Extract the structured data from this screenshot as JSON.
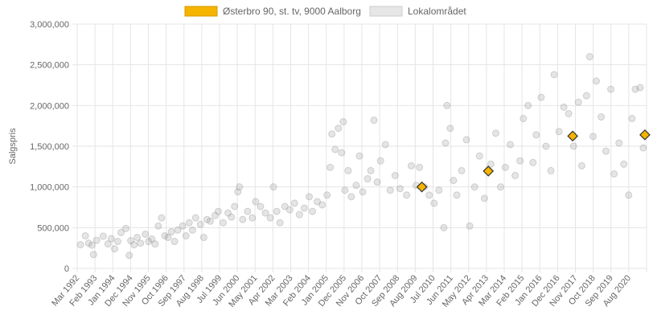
{
  "chart_data": {
    "type": "scatter",
    "title": "",
    "xlabel": "",
    "ylabel": "Salgspris",
    "xlim": [
      "1992-03-01",
      "2021-06-01"
    ],
    "ylim": [
      0,
      3000000
    ],
    "y_ticks": [
      "0",
      "500,000",
      "1,000,000",
      "1,500,000",
      "2,000,000",
      "2,500,000",
      "3,000,000"
    ],
    "x_ticks": [
      "Mar 1992",
      "Feb 1993",
      "Jan 1994",
      "Dec 1994",
      "Nov 1995",
      "Oct 1996",
      "Sep 1997",
      "Aug 1998",
      "Jul 1999",
      "Jun 2000",
      "May 2001",
      "Apr 2002",
      "Mar 2003",
      "Feb 2004",
      "Jan 2005",
      "Dec 2005",
      "Nov 2006",
      "Oct 2007",
      "Sep 2008",
      "Aug 2009",
      "Jul 2010",
      "Jun 2011",
      "May 2012",
      "Apr 2013",
      "Mar 2014",
      "Feb 2015",
      "Jan 2016",
      "Dec 2016",
      "Nov 2017",
      "Oct 2018",
      "Sep 2019",
      "Aug 2020"
    ],
    "grid": true,
    "legend_position": "top",
    "series": [
      {
        "name": "Østerbro 90, st. tv, 9000 Aalborg",
        "marker": "diamond",
        "color": "#f5b400",
        "points": [
          {
            "x": "2009-11-15",
            "y": 1000000
          },
          {
            "x": "2013-04-15",
            "y": 1195000
          },
          {
            "x": "2017-08-15",
            "y": 1625000
          },
          {
            "x": "2021-05-01",
            "y": 1640000
          }
        ]
      },
      {
        "name": "Lokalområdet",
        "marker": "circle",
        "color": "#aaaaaa",
        "points": [
          {
            "x": "1992-05-01",
            "y": 290000
          },
          {
            "x": "1992-08-01",
            "y": 400000
          },
          {
            "x": "1992-10-01",
            "y": 310000
          },
          {
            "x": "1992-12-01",
            "y": 285000
          },
          {
            "x": "1993-01-01",
            "y": 170000
          },
          {
            "x": "1993-03-01",
            "y": 345000
          },
          {
            "x": "1993-07-01",
            "y": 395000
          },
          {
            "x": "1993-10-01",
            "y": 300000
          },
          {
            "x": "1993-12-01",
            "y": 365000
          },
          {
            "x": "1994-02-01",
            "y": 240000
          },
          {
            "x": "1994-04-01",
            "y": 330000
          },
          {
            "x": "1994-06-01",
            "y": 440000
          },
          {
            "x": "1994-09-01",
            "y": 490000
          },
          {
            "x": "1994-11-01",
            "y": 160000
          },
          {
            "x": "1994-12-01",
            "y": 340000
          },
          {
            "x": "1995-02-01",
            "y": 290000
          },
          {
            "x": "1995-04-01",
            "y": 380000
          },
          {
            "x": "1995-06-01",
            "y": 310000
          },
          {
            "x": "1995-09-01",
            "y": 420000
          },
          {
            "x": "1995-11-01",
            "y": 330000
          },
          {
            "x": "1996-01-01",
            "y": 360000
          },
          {
            "x": "1996-03-01",
            "y": 300000
          },
          {
            "x": "1996-05-01",
            "y": 520000
          },
          {
            "x": "1996-07-01",
            "y": 620000
          },
          {
            "x": "1996-09-01",
            "y": 400000
          },
          {
            "x": "1996-11-01",
            "y": 380000
          },
          {
            "x": "1997-01-01",
            "y": 450000
          },
          {
            "x": "1997-03-01",
            "y": 330000
          },
          {
            "x": "1997-05-01",
            "y": 470000
          },
          {
            "x": "1997-08-01",
            "y": 520000
          },
          {
            "x": "1997-10-01",
            "y": 400000
          },
          {
            "x": "1997-12-01",
            "y": 560000
          },
          {
            "x": "1998-02-01",
            "y": 470000
          },
          {
            "x": "1998-04-01",
            "y": 620000
          },
          {
            "x": "1998-07-01",
            "y": 540000
          },
          {
            "x": "1998-09-01",
            "y": 380000
          },
          {
            "x": "1998-11-01",
            "y": 600000
          },
          {
            "x": "1999-01-01",
            "y": 580000
          },
          {
            "x": "1999-04-01",
            "y": 650000
          },
          {
            "x": "1999-06-01",
            "y": 700000
          },
          {
            "x": "1999-09-01",
            "y": 560000
          },
          {
            "x": "1999-12-01",
            "y": 680000
          },
          {
            "x": "2000-02-01",
            "y": 630000
          },
          {
            "x": "2000-04-01",
            "y": 760000
          },
          {
            "x": "2000-06-01",
            "y": 940000
          },
          {
            "x": "2000-07-01",
            "y": 1000000
          },
          {
            "x": "2000-09-01",
            "y": 600000
          },
          {
            "x": "2000-12-01",
            "y": 700000
          },
          {
            "x": "2001-03-01",
            "y": 620000
          },
          {
            "x": "2001-05-01",
            "y": 820000
          },
          {
            "x": "2001-08-01",
            "y": 760000
          },
          {
            "x": "2001-11-01",
            "y": 680000
          },
          {
            "x": "2002-02-01",
            "y": 620000
          },
          {
            "x": "2002-04-01",
            "y": 1000000
          },
          {
            "x": "2002-06-01",
            "y": 700000
          },
          {
            "x": "2002-08-01",
            "y": 560000
          },
          {
            "x": "2002-11-01",
            "y": 760000
          },
          {
            "x": "2003-02-01",
            "y": 720000
          },
          {
            "x": "2003-05-01",
            "y": 800000
          },
          {
            "x": "2003-08-01",
            "y": 660000
          },
          {
            "x": "2003-11-01",
            "y": 740000
          },
          {
            "x": "2004-02-01",
            "y": 880000
          },
          {
            "x": "2004-04-01",
            "y": 700000
          },
          {
            "x": "2004-07-01",
            "y": 820000
          },
          {
            "x": "2004-10-01",
            "y": 780000
          },
          {
            "x": "2005-01-01",
            "y": 900000
          },
          {
            "x": "2005-03-01",
            "y": 1240000
          },
          {
            "x": "2005-04-01",
            "y": 1650000
          },
          {
            "x": "2005-06-01",
            "y": 1460000
          },
          {
            "x": "2005-08-01",
            "y": 1720000
          },
          {
            "x": "2005-10-01",
            "y": 1420000
          },
          {
            "x": "2005-11-01",
            "y": 1800000
          },
          {
            "x": "2005-12-01",
            "y": 960000
          },
          {
            "x": "2006-02-01",
            "y": 1200000
          },
          {
            "x": "2006-04-01",
            "y": 880000
          },
          {
            "x": "2006-07-01",
            "y": 1020000
          },
          {
            "x": "2006-09-01",
            "y": 1380000
          },
          {
            "x": "2006-11-01",
            "y": 940000
          },
          {
            "x": "2007-02-01",
            "y": 1100000
          },
          {
            "x": "2007-04-01",
            "y": 1200000
          },
          {
            "x": "2007-06-01",
            "y": 1820000
          },
          {
            "x": "2007-08-01",
            "y": 1060000
          },
          {
            "x": "2007-10-01",
            "y": 1320000
          },
          {
            "x": "2008-01-01",
            "y": 1520000
          },
          {
            "x": "2008-04-01",
            "y": 960000
          },
          {
            "x": "2008-07-01",
            "y": 1140000
          },
          {
            "x": "2008-10-01",
            "y": 980000
          },
          {
            "x": "2009-02-01",
            "y": 900000
          },
          {
            "x": "2009-05-01",
            "y": 1260000
          },
          {
            "x": "2009-08-01",
            "y": 1020000
          },
          {
            "x": "2009-10-01",
            "y": 1240000
          },
          {
            "x": "2010-01-01",
            "y": 1000000
          },
          {
            "x": "2010-04-01",
            "y": 900000
          },
          {
            "x": "2010-07-01",
            "y": 800000
          },
          {
            "x": "2010-10-01",
            "y": 960000
          },
          {
            "x": "2011-01-01",
            "y": 500000
          },
          {
            "x": "2011-02-01",
            "y": 1540000
          },
          {
            "x": "2011-03-01",
            "y": 2000000
          },
          {
            "x": "2011-05-01",
            "y": 1720000
          },
          {
            "x": "2011-07-01",
            "y": 1080000
          },
          {
            "x": "2011-09-01",
            "y": 900000
          },
          {
            "x": "2011-12-01",
            "y": 1200000
          },
          {
            "x": "2012-03-01",
            "y": 1580000
          },
          {
            "x": "2012-05-01",
            "y": 520000
          },
          {
            "x": "2012-08-01",
            "y": 1000000
          },
          {
            "x": "2012-11-01",
            "y": 1380000
          },
          {
            "x": "2013-02-01",
            "y": 860000
          },
          {
            "x": "2013-06-01",
            "y": 1280000
          },
          {
            "x": "2013-09-01",
            "y": 1660000
          },
          {
            "x": "2013-12-01",
            "y": 1000000
          },
          {
            "x": "2014-03-01",
            "y": 1240000
          },
          {
            "x": "2014-06-01",
            "y": 1520000
          },
          {
            "x": "2014-09-01",
            "y": 1140000
          },
          {
            "x": "2014-12-01",
            "y": 1320000
          },
          {
            "x": "2015-02-01",
            "y": 1840000
          },
          {
            "x": "2015-05-01",
            "y": 2000000
          },
          {
            "x": "2015-08-01",
            "y": 1300000
          },
          {
            "x": "2015-10-01",
            "y": 1640000
          },
          {
            "x": "2016-01-01",
            "y": 2100000
          },
          {
            "x": "2016-04-01",
            "y": 1500000
          },
          {
            "x": "2016-07-01",
            "y": 1200000
          },
          {
            "x": "2016-09-01",
            "y": 2380000
          },
          {
            "x": "2016-12-01",
            "y": 1680000
          },
          {
            "x": "2017-03-01",
            "y": 1980000
          },
          {
            "x": "2017-06-01",
            "y": 1900000
          },
          {
            "x": "2017-09-01",
            "y": 1500000
          },
          {
            "x": "2017-12-01",
            "y": 2040000
          },
          {
            "x": "2018-02-01",
            "y": 1260000
          },
          {
            "x": "2018-05-01",
            "y": 2120000
          },
          {
            "x": "2018-07-01",
            "y": 2600000
          },
          {
            "x": "2018-09-01",
            "y": 1620000
          },
          {
            "x": "2018-11-01",
            "y": 2300000
          },
          {
            "x": "2019-02-01",
            "y": 1860000
          },
          {
            "x": "2019-05-01",
            "y": 1440000
          },
          {
            "x": "2019-08-01",
            "y": 2200000
          },
          {
            "x": "2019-10-01",
            "y": 1160000
          },
          {
            "x": "2020-01-01",
            "y": 1540000
          },
          {
            "x": "2020-04-01",
            "y": 1280000
          },
          {
            "x": "2020-07-01",
            "y": 900000
          },
          {
            "x": "2020-09-01",
            "y": 1840000
          },
          {
            "x": "2020-11-01",
            "y": 2200000
          },
          {
            "x": "2021-02-01",
            "y": 2220000
          },
          {
            "x": "2021-04-01",
            "y": 1480000
          }
        ]
      }
    ]
  },
  "colors": {
    "highlight_fill": "#f5b400",
    "highlight_stroke": "#333333",
    "dot_fill": "#999999",
    "grid": "#e5e5e5",
    "text": "#666666"
  }
}
